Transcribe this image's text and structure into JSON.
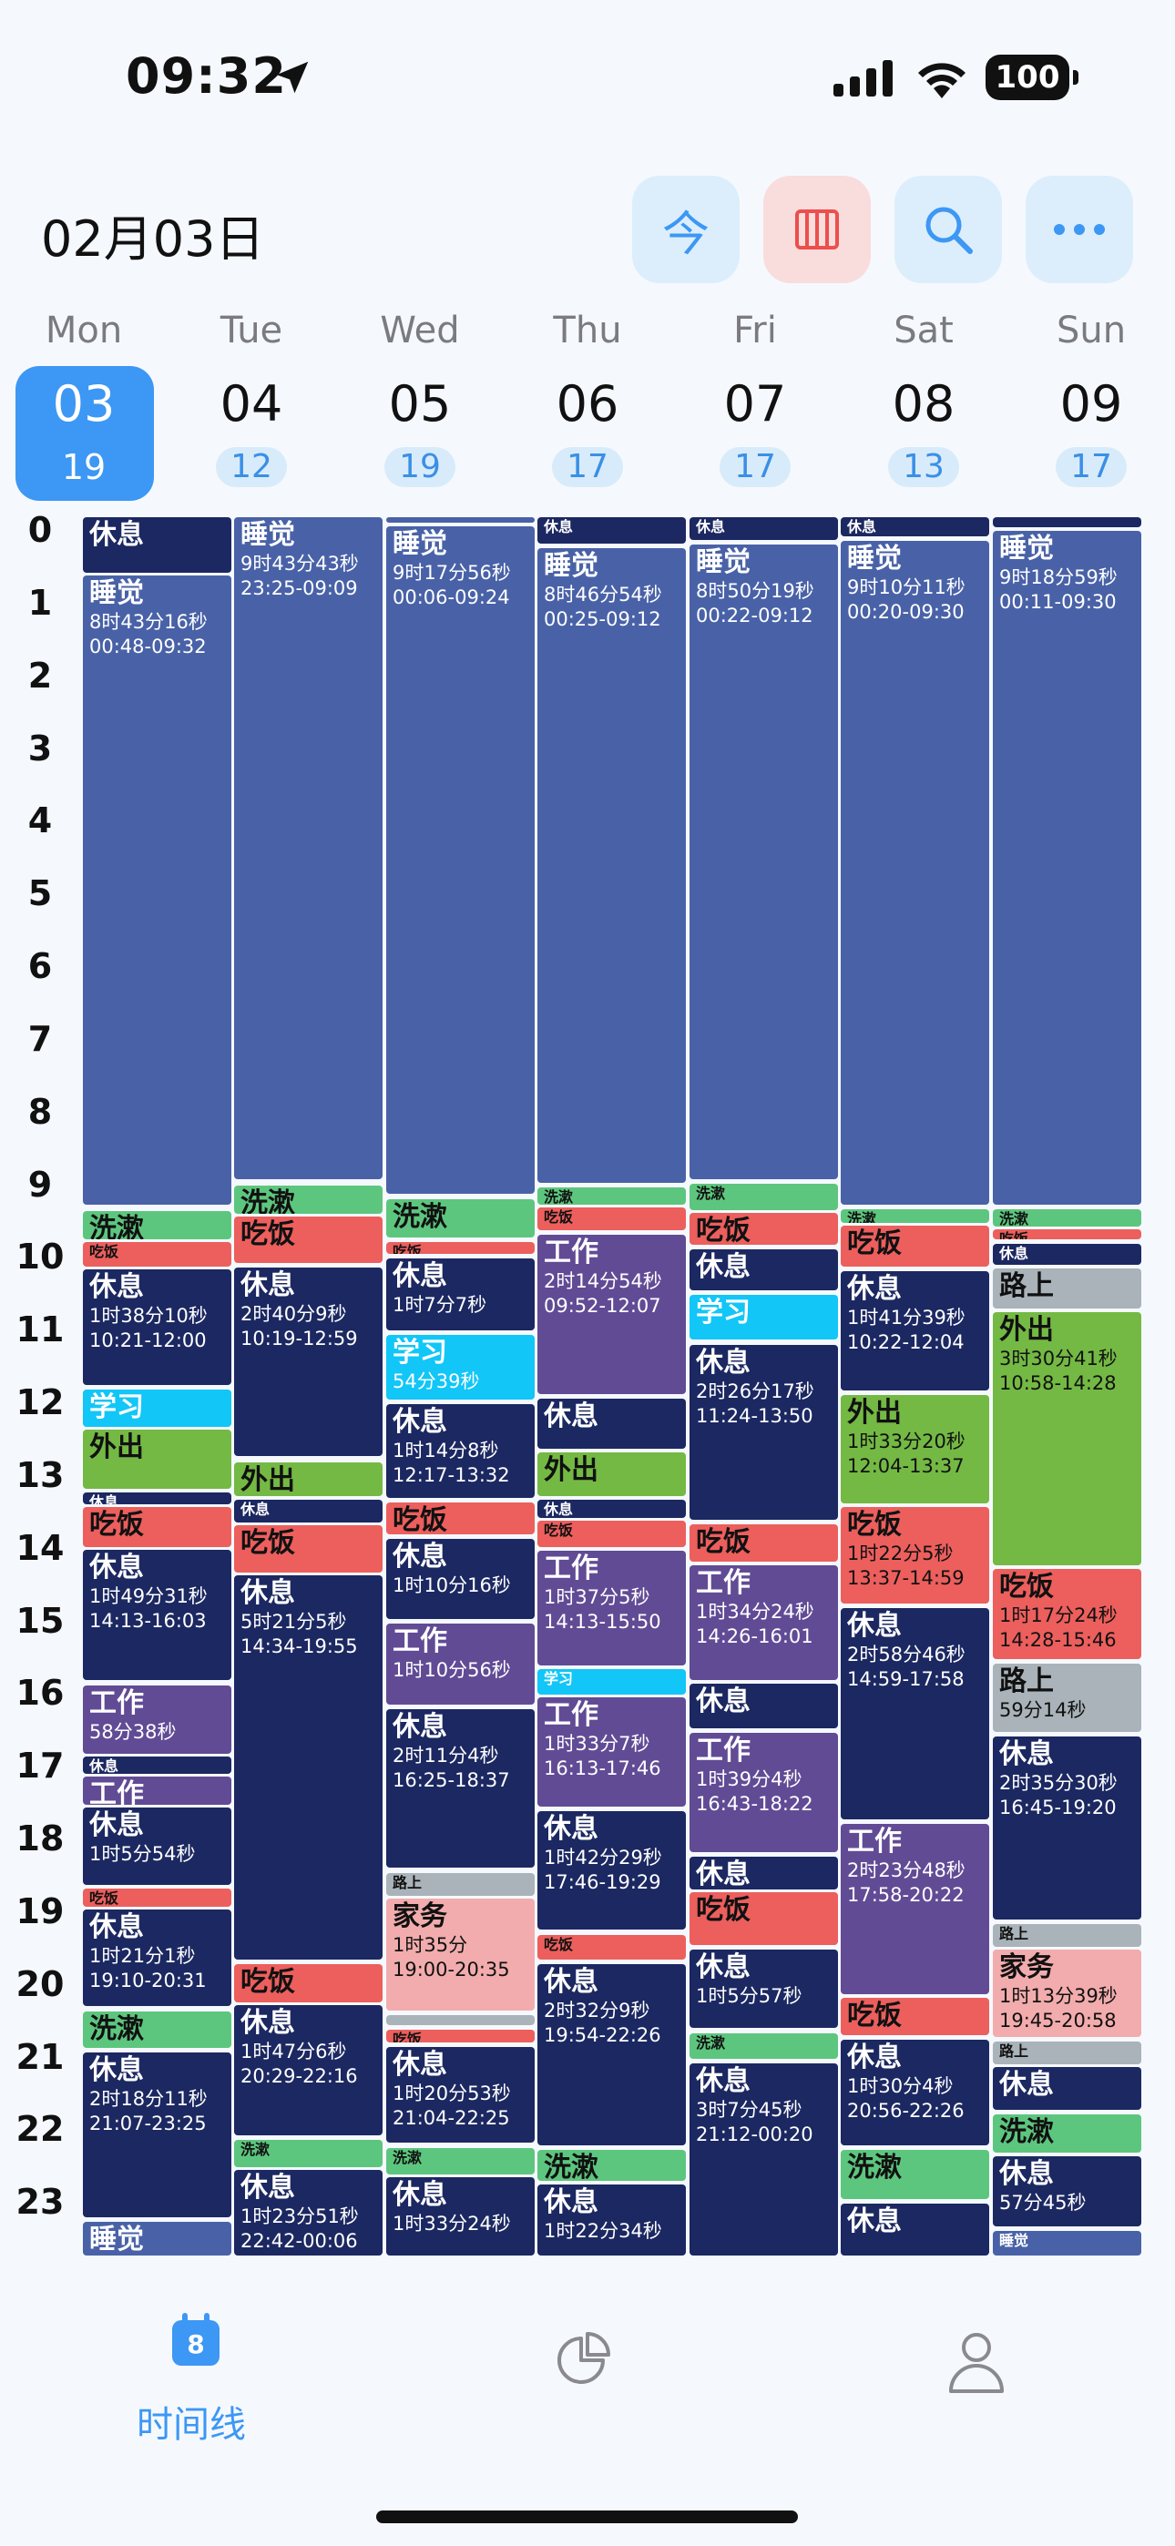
{
  "status": {
    "time": "09:32",
    "battery": "100"
  },
  "header": {
    "date": "02月03日",
    "btn_today": "今"
  },
  "week": [
    {
      "name": "Mon",
      "date": "03",
      "count": "19",
      "today": true
    },
    {
      "name": "Tue",
      "date": "04",
      "count": "12"
    },
    {
      "name": "Wed",
      "date": "05",
      "count": "19"
    },
    {
      "name": "Thu",
      "date": "06",
      "count": "17"
    },
    {
      "name": "Fri",
      "date": "07",
      "count": "17"
    },
    {
      "name": "Sat",
      "date": "08",
      "count": "13"
    },
    {
      "name": "Sun",
      "date": "09",
      "count": "17"
    }
  ],
  "hours": [
    "0",
    "1",
    "2",
    "3",
    "4",
    "5",
    "6",
    "7",
    "8",
    "9",
    "10",
    "11",
    "12",
    "13",
    "14",
    "15",
    "16",
    "17",
    "18",
    "19",
    "20",
    "21",
    "22",
    "23"
  ],
  "colors": {
    "sleep": "#4962a7",
    "rest": "#1c2861",
    "wash": "#5dc67e",
    "eat": "#ec5f5d",
    "study": "#12c6f7",
    "out": "#74b944",
    "work": "#614b95",
    "road": "#a9b3b9",
    "chores": "#f2acad"
  },
  "events": [
    [
      {
        "name": "休息",
        "type": "rest",
        "s": 0.0,
        "e": 0.8
      },
      {
        "name": "睡觉",
        "type": "sleep",
        "s": 0.8,
        "e": 9.5,
        "dur": "8时43分16秒",
        "range": "00:48-09:32"
      },
      {
        "name": "洗漱",
        "type": "wash",
        "s": 9.55,
        "e": 9.97
      },
      {
        "name": "吃饭",
        "type": "eat",
        "s": 9.97,
        "e": 10.35
      },
      {
        "name": "休息",
        "type": "rest",
        "s": 10.35,
        "e": 11.97,
        "dur": "1时38分10秒",
        "range": "10:21-12:00"
      },
      {
        "name": "学习",
        "type": "study",
        "s": 12.0,
        "e": 12.55
      },
      {
        "name": "外出",
        "type": "out",
        "s": 12.55,
        "e": 13.4
      },
      {
        "name": "休息",
        "type": "rest",
        "s": 13.42,
        "e": 13.62
      },
      {
        "name": "吃饭",
        "type": "eat",
        "s": 13.62,
        "e": 14.2
      },
      {
        "name": "休息",
        "type": "rest",
        "s": 14.2,
        "e": 16.03,
        "dur": "1时49分31秒",
        "range": "14:13-16:03"
      },
      {
        "name": "工作",
        "type": "work",
        "s": 16.07,
        "e": 17.05,
        "dur": "58分38秒"
      },
      {
        "name": "休息",
        "type": "rest",
        "s": 17.05,
        "e": 17.32
      },
      {
        "name": "工作",
        "type": "work",
        "s": 17.32,
        "e": 17.75
      },
      {
        "name": "休息",
        "type": "rest",
        "s": 17.75,
        "e": 18.85,
        "dur": "1时5分54秒"
      },
      {
        "name": "吃饭",
        "type": "eat",
        "s": 18.87,
        "e": 19.15
      },
      {
        "name": "休息",
        "type": "rest",
        "s": 19.15,
        "e": 20.52,
        "dur": "1时21分1秒",
        "range": "19:10-20:31"
      },
      {
        "name": "洗漱",
        "type": "wash",
        "s": 20.55,
        "e": 21.1
      },
      {
        "name": "休息",
        "type": "rest",
        "s": 21.12,
        "e": 23.42,
        "dur": "2时18分11秒",
        "range": "21:07-23:25"
      },
      {
        "name": "睡觉",
        "type": "sleep",
        "s": 23.45,
        "e": 23.95
      }
    ],
    [
      {
        "name": "睡觉",
        "type": "sleep",
        "s": 0.0,
        "e": 9.15,
        "dur": "9时43分43秒",
        "range": "23:25-09:09"
      },
      {
        "name": "洗漱",
        "type": "wash",
        "s": 9.2,
        "e": 9.62
      },
      {
        "name": "吃饭",
        "type": "eat",
        "s": 9.62,
        "e": 10.3
      },
      {
        "name": "休息",
        "type": "rest",
        "s": 10.32,
        "e": 12.95,
        "dur": "2时40分9秒",
        "range": "10:19-12:59"
      },
      {
        "name": "外出",
        "type": "out",
        "s": 13.0,
        "e": 13.5
      },
      {
        "name": "休息",
        "type": "rest",
        "s": 13.52,
        "e": 13.87
      },
      {
        "name": "吃饭",
        "type": "eat",
        "s": 13.87,
        "e": 14.55
      },
      {
        "name": "休息",
        "type": "rest",
        "s": 14.55,
        "e": 19.88,
        "dur": "5时21分5秒",
        "range": "14:34-19:55"
      },
      {
        "name": "吃饭",
        "type": "eat",
        "s": 19.9,
        "e": 20.47
      },
      {
        "name": "休息",
        "type": "rest",
        "s": 20.47,
        "e": 22.3,
        "dur": "1时47分6秒",
        "range": "20:29-22:16"
      },
      {
        "name": "洗漱",
        "type": "wash",
        "s": 22.32,
        "e": 22.73
      },
      {
        "name": "休息",
        "type": "rest",
        "s": 22.73,
        "e": 23.95,
        "dur": "1时23分51秒",
        "range": "22:42-00:06"
      }
    ],
    [
      {
        "name": "",
        "type": "sleep",
        "s": 0.0,
        "e": 0.1
      },
      {
        "name": "睡觉",
        "type": "sleep",
        "s": 0.12,
        "e": 9.35,
        "dur": "9时17分56秒",
        "range": "00:06-09:24"
      },
      {
        "name": "洗漱",
        "type": "wash",
        "s": 9.38,
        "e": 9.95
      },
      {
        "name": "吃饭",
        "type": "eat",
        "s": 9.97,
        "e": 10.17,
        "small": true
      },
      {
        "name": "休息",
        "type": "rest",
        "s": 10.2,
        "e": 11.22,
        "dur": "1时7分7秒"
      },
      {
        "name": "学习",
        "type": "study",
        "s": 11.25,
        "e": 12.17,
        "dur": "54分39秒"
      },
      {
        "name": "休息",
        "type": "rest",
        "s": 12.2,
        "e": 13.53,
        "dur": "1时14分8秒",
        "range": "12:17-13:32"
      },
      {
        "name": "吃饭",
        "type": "eat",
        "s": 13.55,
        "e": 14.03
      },
      {
        "name": "休息",
        "type": "rest",
        "s": 14.05,
        "e": 15.2,
        "dur": "1时10分16秒"
      },
      {
        "name": "工作",
        "type": "work",
        "s": 15.22,
        "e": 16.37,
        "dur": "1时10分56秒"
      },
      {
        "name": "休息",
        "type": "rest",
        "s": 16.4,
        "e": 18.62,
        "dur": "2时11分4秒",
        "range": "16:25-18:37"
      },
      {
        "name": "路上",
        "type": "road",
        "s": 18.65,
        "e": 19.0
      },
      {
        "name": "家务",
        "type": "chores",
        "s": 19.0,
        "e": 20.58,
        "dur": "1时35分",
        "range": "19:00-20:35"
      },
      {
        "name": "",
        "type": "road",
        "s": 20.6,
        "e": 20.78
      },
      {
        "name": "吃饭",
        "type": "eat",
        "s": 20.8,
        "e": 21.02,
        "small": true
      },
      {
        "name": "休息",
        "type": "rest",
        "s": 21.05,
        "e": 22.4,
        "dur": "1时20分53秒",
        "range": "21:04-22:25"
      },
      {
        "name": "洗漱",
        "type": "wash",
        "s": 22.43,
        "e": 22.83
      },
      {
        "name": "休息",
        "type": "rest",
        "s": 22.83,
        "e": 23.95,
        "dur": "1时33分24秒"
      }
    ],
    [
      {
        "name": "休息",
        "type": "rest",
        "s": 0.0,
        "e": 0.4
      },
      {
        "name": "睡觉",
        "type": "sleep",
        "s": 0.42,
        "e": 9.2,
        "dur": "8时46分54秒",
        "range": "00:25-09:12"
      },
      {
        "name": "洗漱",
        "type": "wash",
        "s": 9.22,
        "e": 9.5,
        "small": true
      },
      {
        "name": "吃饭",
        "type": "eat",
        "s": 9.5,
        "e": 9.85
      },
      {
        "name": "工作",
        "type": "work",
        "s": 9.87,
        "e": 12.1,
        "dur": "2时14分54秒",
        "range": "09:52-12:07"
      },
      {
        "name": "休息",
        "type": "rest",
        "s": 12.13,
        "e": 12.85
      },
      {
        "name": "外出",
        "type": "out",
        "s": 12.87,
        "e": 13.5
      },
      {
        "name": "休息",
        "type": "rest",
        "s": 13.52,
        "e": 13.8,
        "small": true
      },
      {
        "name": "吃饭",
        "type": "eat",
        "s": 13.8,
        "e": 14.2,
        "small": true
      },
      {
        "name": "工作",
        "type": "work",
        "s": 14.22,
        "e": 15.83,
        "dur": "1时37分5秒",
        "range": "14:13-15:50"
      },
      {
        "name": "学习",
        "type": "study",
        "s": 15.85,
        "e": 16.23
      },
      {
        "name": "工作",
        "type": "work",
        "s": 16.23,
        "e": 17.78,
        "dur": "1时33分7秒",
        "range": "16:13-17:46"
      },
      {
        "name": "休息",
        "type": "rest",
        "s": 17.8,
        "e": 19.47,
        "dur": "1时42分29秒",
        "range": "17:46-19:29"
      },
      {
        "name": "吃饭",
        "type": "eat",
        "s": 19.5,
        "e": 19.88
      },
      {
        "name": "休息",
        "type": "rest",
        "s": 19.9,
        "e": 22.43,
        "dur": "2时32分9秒",
        "range": "19:54-22:26"
      },
      {
        "name": "洗漱",
        "type": "wash",
        "s": 22.46,
        "e": 22.92
      },
      {
        "name": "休息",
        "type": "rest",
        "s": 22.94,
        "e": 23.95,
        "dur": "1时22分34秒"
      }
    ],
    [
      {
        "name": "休息",
        "type": "rest",
        "s": 0.0,
        "e": 0.35,
        "small": true
      },
      {
        "name": "睡觉",
        "type": "sleep",
        "s": 0.37,
        "e": 9.15,
        "dur": "8时50分19秒",
        "range": "00:22-09:12"
      },
      {
        "name": "洗漱",
        "type": "wash",
        "s": 9.17,
        "e": 9.57
      },
      {
        "name": "吃饭",
        "type": "eat",
        "s": 9.57,
        "e": 10.05
      },
      {
        "name": "休息",
        "type": "rest",
        "s": 10.07,
        "e": 10.67
      },
      {
        "name": "学习",
        "type": "study",
        "s": 10.7,
        "e": 11.35
      },
      {
        "name": "休息",
        "type": "rest",
        "s": 11.38,
        "e": 13.83,
        "dur": "2时26分17秒",
        "range": "11:24-13:50"
      },
      {
        "name": "吃饭",
        "type": "eat",
        "s": 13.85,
        "e": 14.4
      },
      {
        "name": "工作",
        "type": "work",
        "s": 14.42,
        "e": 16.03,
        "dur": "1时34分24秒",
        "range": "14:26-16:01"
      },
      {
        "name": "休息",
        "type": "rest",
        "s": 16.05,
        "e": 16.7
      },
      {
        "name": "工作",
        "type": "work",
        "s": 16.72,
        "e": 18.4,
        "dur": "1时39分4秒",
        "range": "16:43-18:22"
      },
      {
        "name": "休息",
        "type": "rest",
        "s": 18.42,
        "e": 18.92
      },
      {
        "name": "吃饭",
        "type": "eat",
        "s": 18.92,
        "e": 19.68
      },
      {
        "name": "休息",
        "type": "rest",
        "s": 19.7,
        "e": 20.82,
        "dur": "1时5分57秒"
      },
      {
        "name": "洗漱",
        "type": "wash",
        "s": 20.85,
        "e": 21.25
      },
      {
        "name": "休息",
        "type": "rest",
        "s": 21.27,
        "e": 23.95,
        "dur": "3时7分45秒",
        "range": "21:12-00:20"
      }
    ],
    [
      {
        "name": "休息",
        "type": "rest",
        "s": 0.0,
        "e": 0.3,
        "small": true
      },
      {
        "name": "睡觉",
        "type": "sleep",
        "s": 0.32,
        "e": 9.5,
        "dur": "9时10分11秒",
        "range": "00:20-09:30"
      },
      {
        "name": "洗漱",
        "type": "wash",
        "s": 9.52,
        "e": 9.75,
        "small": true
      },
      {
        "name": "吃饭",
        "type": "eat",
        "s": 9.75,
        "e": 10.35
      },
      {
        "name": "休息",
        "type": "rest",
        "s": 10.37,
        "e": 12.05,
        "dur": "1时41分39秒",
        "range": "10:22-12:04"
      },
      {
        "name": "外出",
        "type": "out",
        "s": 12.07,
        "e": 13.6,
        "dur": "1时33分20秒",
        "range": "12:04-13:37"
      },
      {
        "name": "吃饭",
        "type": "eat",
        "s": 13.62,
        "e": 14.98,
        "dur": "1时22分5秒",
        "range": "13:37-14:59"
      },
      {
        "name": "休息",
        "type": "rest",
        "s": 15.0,
        "e": 17.95,
        "dur": "2时58分46秒",
        "range": "14:59-17:58"
      },
      {
        "name": "工作",
        "type": "work",
        "s": 17.97,
        "e": 20.35,
        "dur": "2时23分48秒",
        "range": "17:58-20:22"
      },
      {
        "name": "吃饭",
        "type": "eat",
        "s": 20.37,
        "e": 20.92
      },
      {
        "name": "休息",
        "type": "rest",
        "s": 20.94,
        "e": 22.43,
        "dur": "1时30分4秒",
        "range": "20:56-22:26"
      },
      {
        "name": "洗漱",
        "type": "wash",
        "s": 22.46,
        "e": 23.17
      },
      {
        "name": "休息",
        "type": "rest",
        "s": 23.2,
        "e": 23.95
      }
    ],
    [
      {
        "name": "",
        "type": "rest",
        "s": 0.0,
        "e": 0.17
      },
      {
        "name": "睡觉",
        "type": "sleep",
        "s": 0.19,
        "e": 9.5,
        "dur": "9时18分59秒",
        "range": "00:11-09:30"
      },
      {
        "name": "洗漱",
        "type": "wash",
        "s": 9.52,
        "e": 9.8,
        "small": true
      },
      {
        "name": "吃饭",
        "type": "eat",
        "s": 9.8,
        "e": 9.97,
        "small": true
      },
      {
        "name": "休息",
        "type": "rest",
        "s": 9.99,
        "e": 10.32,
        "small": true
      },
      {
        "name": "路上",
        "type": "road",
        "s": 10.34,
        "e": 10.92
      },
      {
        "name": "外出",
        "type": "out",
        "s": 10.94,
        "e": 14.45,
        "dur": "3时30分41秒",
        "range": "10:58-14:28"
      },
      {
        "name": "吃饭",
        "type": "eat",
        "s": 14.47,
        "e": 15.75,
        "dur": "1时17分24秒",
        "range": "14:28-15:46"
      },
      {
        "name": "路上",
        "type": "road",
        "s": 15.77,
        "e": 16.75,
        "dur": "59分14秒"
      },
      {
        "name": "休息",
        "type": "rest",
        "s": 16.77,
        "e": 19.33,
        "dur": "2时35分30秒",
        "range": "16:45-19:20"
      },
      {
        "name": "路上",
        "type": "road",
        "s": 19.35,
        "e": 19.7
      },
      {
        "name": "家务",
        "type": "chores",
        "s": 19.7,
        "e": 20.95,
        "dur": "1时13分39秒",
        "range": "19:45-20:58"
      },
      {
        "name": "路上",
        "type": "road",
        "s": 20.97,
        "e": 21.32
      },
      {
        "name": "休息",
        "type": "rest",
        "s": 21.32,
        "e": 21.95
      },
      {
        "name": "洗漱",
        "type": "wash",
        "s": 21.97,
        "e": 22.53
      },
      {
        "name": "休息",
        "type": "rest",
        "s": 22.55,
        "e": 23.55,
        "dur": "57分45秒"
      },
      {
        "name": "睡觉",
        "type": "sleep",
        "s": 23.57,
        "e": 23.95
      }
    ]
  ],
  "tabs": [
    {
      "label": "时间线",
      "icon": "calendar-icon",
      "badge": "8",
      "active": true
    },
    {
      "label": "",
      "icon": "pie-chart-icon"
    },
    {
      "label": "",
      "icon": "person-icon"
    }
  ]
}
